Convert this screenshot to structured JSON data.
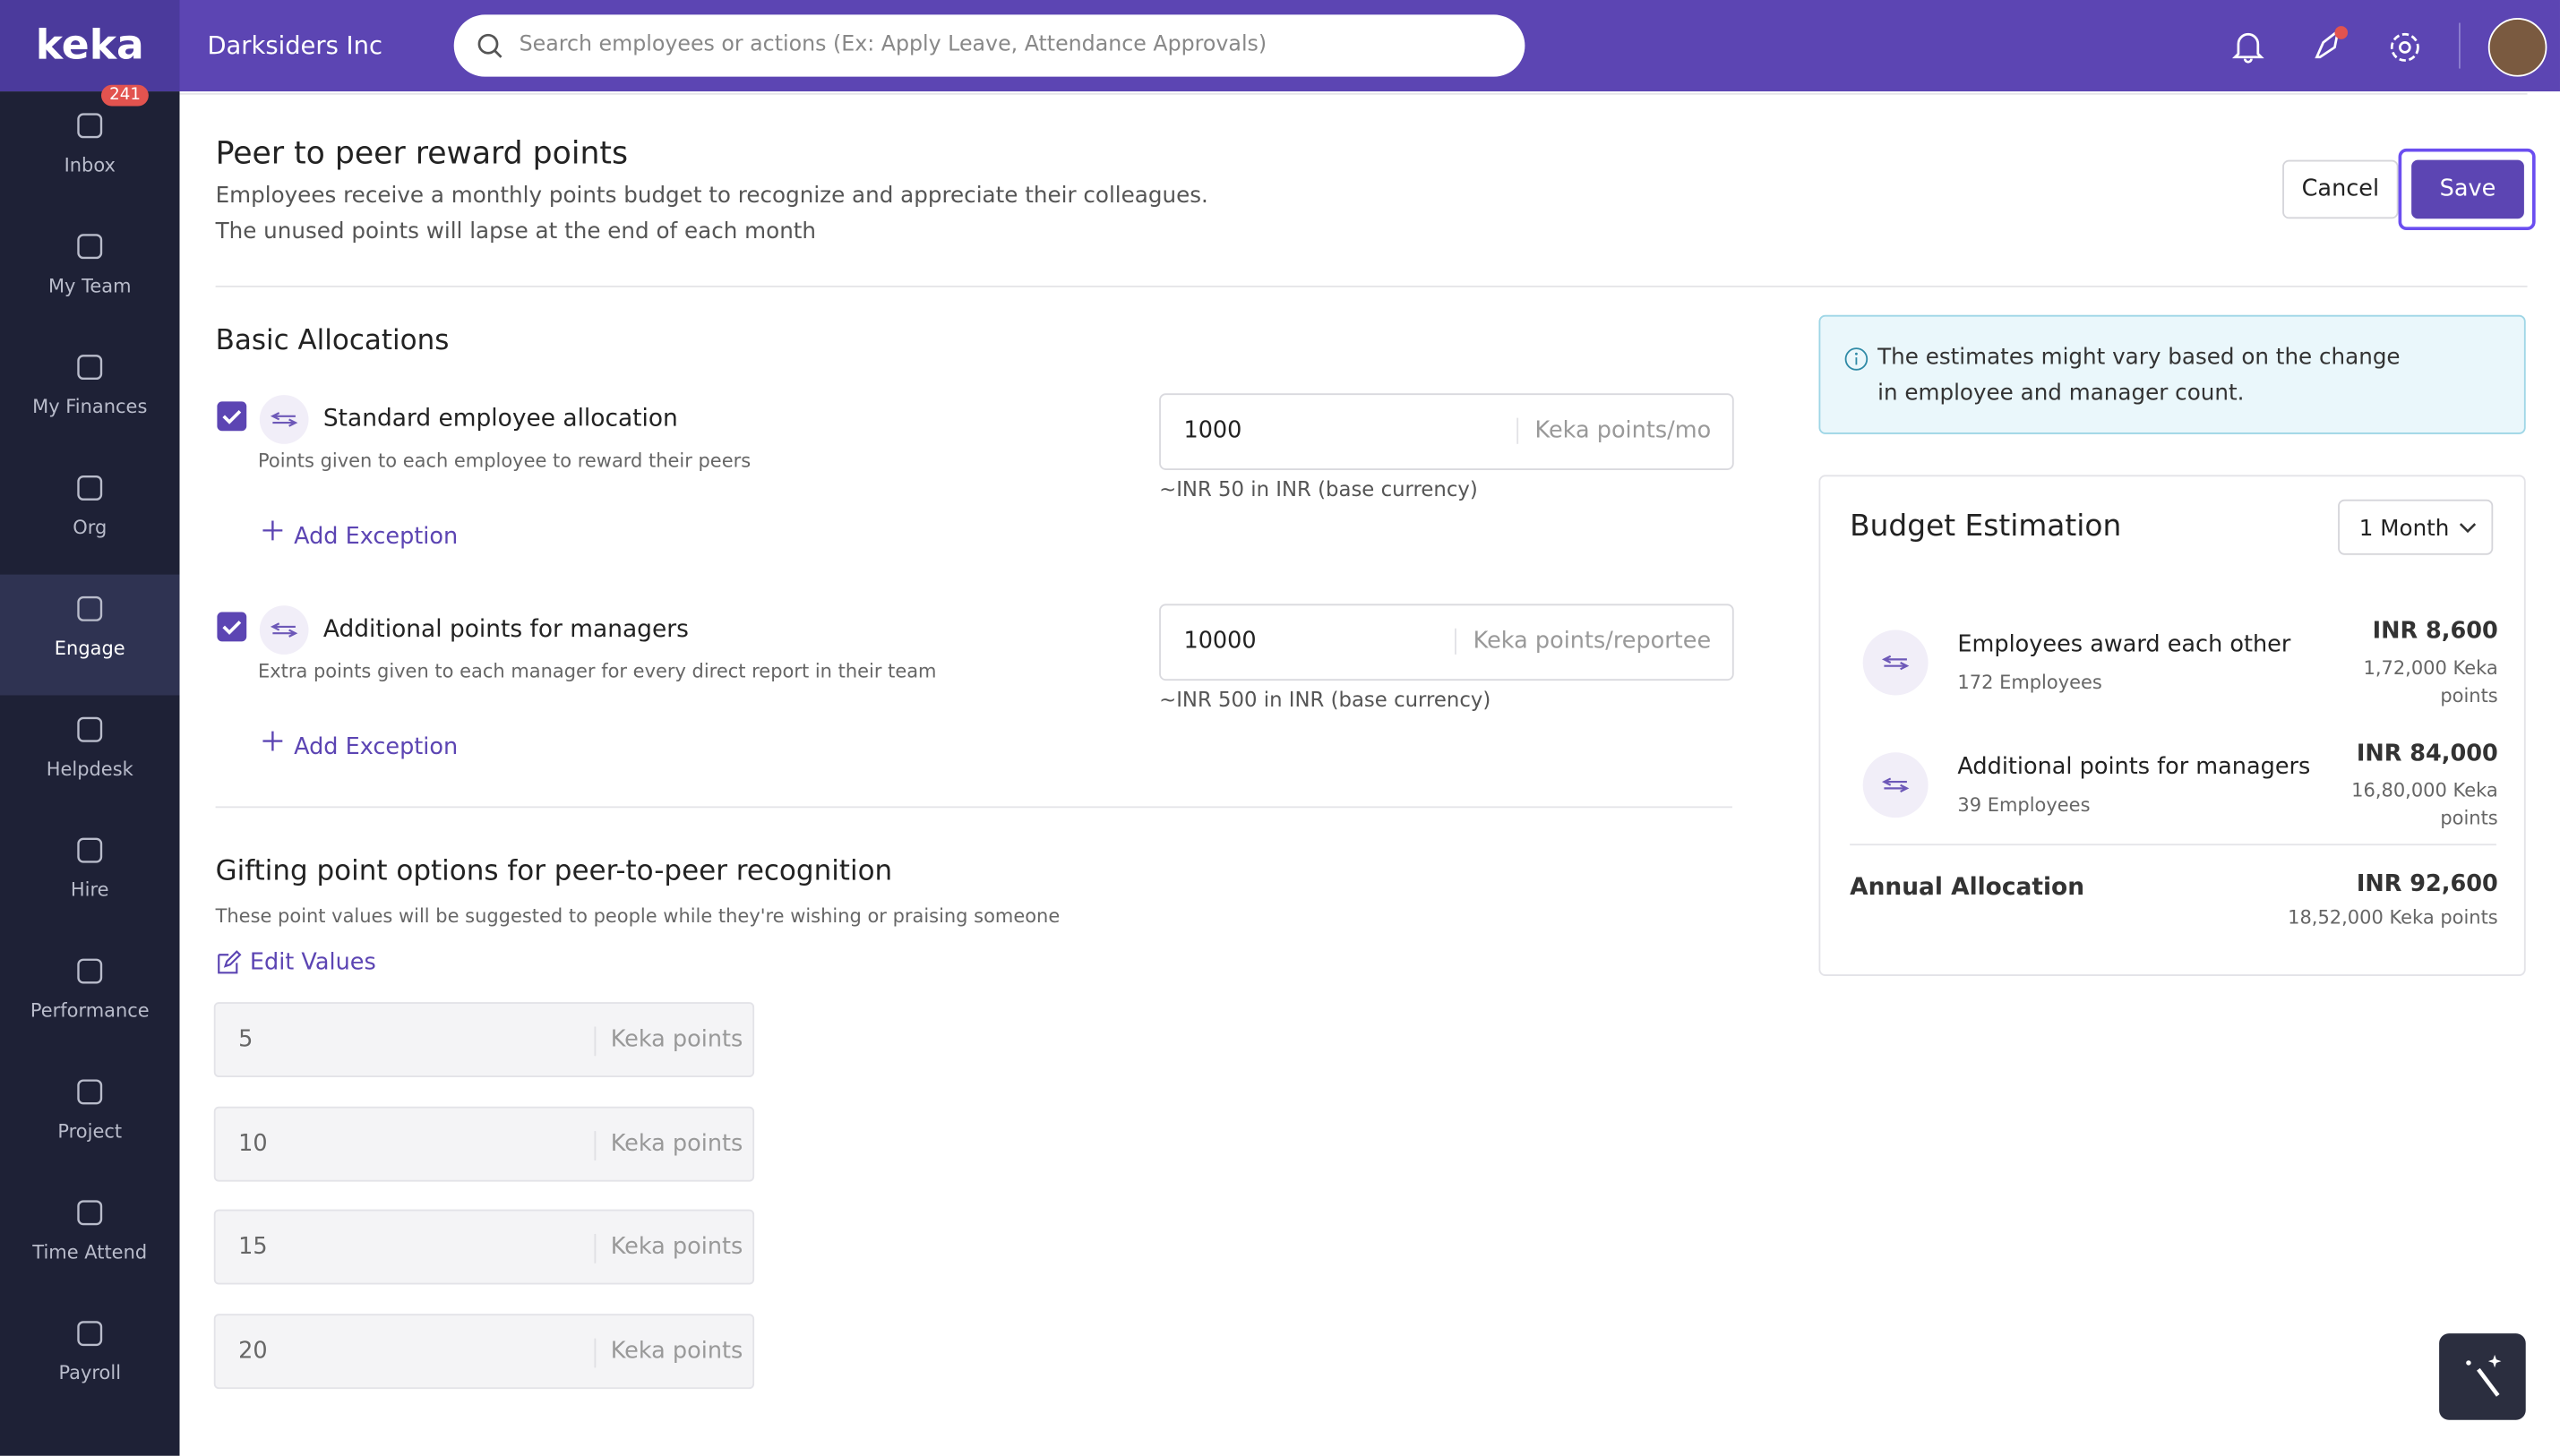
{
  "brand": "keka",
  "company": "Darksiders Inc",
  "search_placeholder": "Search employees or actions (Ex: Apply Leave, Attendance Approvals)",
  "sidebar": [
    {
      "label": "Inbox",
      "badge": "241"
    },
    {
      "label": "My Team"
    },
    {
      "label": "My Finances"
    },
    {
      "label": "Org"
    },
    {
      "label": "Engage"
    },
    {
      "label": "Helpdesk"
    },
    {
      "label": "Hire"
    },
    {
      "label": "Performance"
    },
    {
      "label": "Project"
    },
    {
      "label": "Time Attend"
    },
    {
      "label": "Payroll"
    }
  ],
  "header": {
    "title": "Peer to peer reward points",
    "desc1": "Employees receive a monthly points budget to recognize and appreciate their colleagues.",
    "desc2": "The unused points will lapse at the end of each month",
    "cancel": "Cancel",
    "save": "Save"
  },
  "basic": {
    "title": "Basic Allocations",
    "items": [
      {
        "label": "Standard employee allocation",
        "desc": "Points given to each employee to reward their peers",
        "value": "1000",
        "unit": "Keka points/mo",
        "note": "~INR 50 in INR (base currency)",
        "add": "Add Exception"
      },
      {
        "label": "Additional points for managers",
        "desc": "Extra points given to each manager for every direct report in their team",
        "value": "10000",
        "unit": "Keka points/reportee",
        "note": "~INR 500 in INR (base currency)",
        "add": "Add Exception"
      }
    ]
  },
  "gifting": {
    "title": "Gifting point options for peer-to-peer recognition",
    "desc": "These point values will be suggested to people while they're wishing or praising someone",
    "edit": "Edit Values",
    "options": [
      {
        "value": "5",
        "unit": "Keka points"
      },
      {
        "value": "10",
        "unit": "Keka points"
      },
      {
        "value": "15",
        "unit": "Keka points"
      },
      {
        "value": "20",
        "unit": "Keka points"
      }
    ]
  },
  "info": "The estimates might vary based on the change in employee and manager count.",
  "budget": {
    "title": "Budget Estimation",
    "period": "1 Month",
    "rows": [
      {
        "label": "Employees award each other",
        "sub": "172 Employees",
        "amount": "INR 8,600",
        "points": "1,72,000 Keka points"
      },
      {
        "label": "Additional points for managers",
        "sub": "39 Employees",
        "amount": "INR 84,000",
        "points": "16,80,000 Keka points"
      }
    ],
    "annual": {
      "label": "Annual Allocation",
      "amount": "INR 92,600",
      "points": "18,52,000 Keka points"
    }
  }
}
